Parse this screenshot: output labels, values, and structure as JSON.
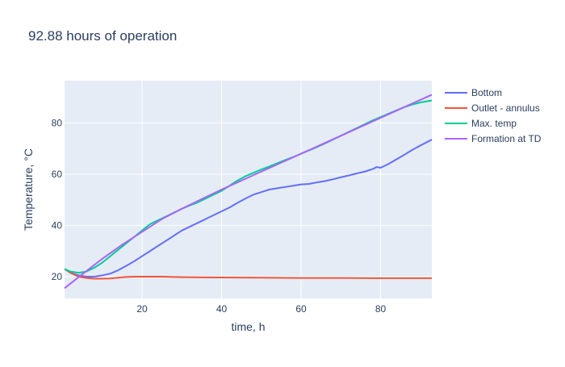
{
  "chart_data": {
    "type": "line",
    "title": "92.88 hours of operation",
    "xlabel": "time, h",
    "ylabel": "Temperature, °C",
    "xlim": [
      0.5,
      92.88
    ],
    "ylim": [
      11.5,
      96.5
    ],
    "x_ticks": [
      20,
      40,
      60,
      80
    ],
    "y_ticks": [
      20,
      40,
      60,
      80
    ],
    "grid": true,
    "legend_position": "right",
    "series": [
      {
        "name": "Bottom",
        "color": "#636efa",
        "x": [
          0.5,
          2,
          4,
          6,
          8,
          10,
          12,
          14,
          16,
          18,
          20,
          22,
          24,
          26,
          28,
          30,
          32,
          34,
          36,
          38,
          40,
          42,
          44,
          46,
          48,
          50,
          52,
          54,
          56,
          58,
          60,
          62,
          64,
          66,
          68,
          70,
          72,
          74,
          76,
          78,
          79,
          80,
          82,
          84,
          86,
          88,
          90,
          92.88
        ],
        "y": [
          23,
          21.5,
          20.5,
          20,
          20,
          20.5,
          21.2,
          22.5,
          24.2,
          26,
          28,
          30,
          32,
          34,
          36,
          38,
          39.5,
          41,
          42.5,
          44,
          45.5,
          47,
          48.8,
          50.5,
          52,
          53,
          54,
          54.5,
          55,
          55.5,
          56,
          56.2,
          56.8,
          57.3,
          58,
          58.8,
          59.5,
          60.3,
          61,
          62,
          62.8,
          62.5,
          64,
          65.8,
          67.6,
          69.5,
          71.2,
          73.5
        ]
      },
      {
        "name": "Outlet - annulus",
        "color": "#ef553b",
        "x": [
          0.5,
          2,
          4,
          6,
          8,
          10,
          12,
          14,
          16,
          18,
          20,
          25,
          30,
          40,
          50,
          60,
          70,
          80,
          92.88
        ],
        "y": [
          23,
          21.5,
          20,
          19.5,
          19.2,
          19.2,
          19.3,
          19.6,
          19.9,
          20,
          20,
          20,
          19.8,
          19.7,
          19.6,
          19.5,
          19.5,
          19.4,
          19.4
        ]
      },
      {
        "name": "Max. temp",
        "color": "#00cc96",
        "x": [
          0.5,
          2,
          4,
          6,
          8,
          10,
          12,
          14,
          16,
          18,
          20,
          22,
          24,
          26,
          28,
          30,
          32,
          34,
          36,
          38,
          40,
          42,
          44,
          46,
          48,
          50,
          52,
          54,
          56,
          58,
          60,
          62,
          64,
          66,
          68,
          70,
          72,
          74,
          76,
          78,
          80,
          82,
          84,
          86,
          88,
          90,
          92.88
        ],
        "y": [
          23,
          22,
          21.5,
          22,
          23.5,
          25.5,
          28,
          30.5,
          33,
          35.5,
          38,
          40.5,
          42,
          43.5,
          45,
          46.5,
          47.8,
          49,
          50.5,
          52,
          53.5,
          55.5,
          57.5,
          59.2,
          60.5,
          61.8,
          63,
          64.3,
          65.5,
          66.7,
          68,
          69.3,
          70.6,
          72,
          73.5,
          75,
          76.5,
          78,
          79.5,
          81,
          82.3,
          83.6,
          84.9,
          86.2,
          87.2,
          88,
          88.8
        ]
      },
      {
        "name": "Formation at TD",
        "color": "#ab63fa",
        "x": [
          0.5,
          5,
          10,
          15,
          20,
          25,
          30,
          35,
          40,
          45,
          50,
          55,
          60,
          65,
          70,
          75,
          80,
          85,
          90,
          92.88
        ],
        "y": [
          15.5,
          21,
          27,
          32.5,
          37.5,
          42.5,
          46.5,
          50.3,
          54,
          57.5,
          61,
          64.5,
          68,
          71.5,
          75,
          78.5,
          82,
          85.5,
          89,
          91
        ]
      }
    ]
  }
}
